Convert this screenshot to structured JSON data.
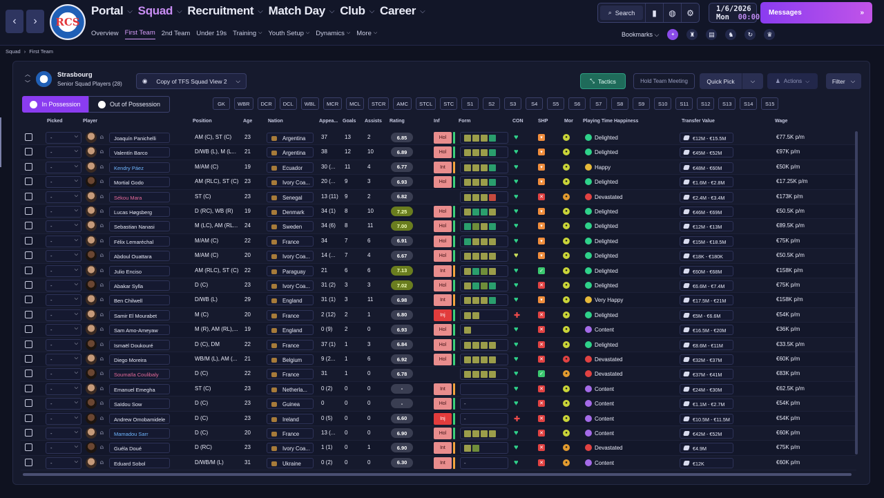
{
  "nav": {
    "back_icon": "chevron-left-icon",
    "forward_icon": "chevron-right-icon",
    "main": [
      {
        "label": "Portal"
      },
      {
        "label": "Squad"
      },
      {
        "label": "Recruitment"
      },
      {
        "label": "Match Day"
      },
      {
        "label": "Club"
      },
      {
        "label": "Career"
      }
    ],
    "sub": [
      {
        "label": "Overview"
      },
      {
        "label": "First Team"
      },
      {
        "label": "2nd Team"
      },
      {
        "label": "Under 19s"
      },
      {
        "label": "Training"
      },
      {
        "label": "Youth Setup"
      },
      {
        "label": "Dynamics"
      },
      {
        "label": "More"
      }
    ],
    "crest_text": "RCS"
  },
  "tools": {
    "search_label": "Search"
  },
  "date": {
    "day": "1/6/2026",
    "weekday": "Mon",
    "time": "00:00"
  },
  "messages": {
    "label": "Messages"
  },
  "bookmarks": {
    "label": "Bookmarks"
  },
  "breadcrumb": {
    "root": "Squad",
    "current": "First Team"
  },
  "club": {
    "name": "Strasbourg",
    "subtitle": "Senior Squad Players (28)"
  },
  "view": {
    "label": "Copy of TFS Squad View 2"
  },
  "buttons": {
    "tactics": "Tactics",
    "meeting": "Hold Team Meeting",
    "quick_pick": "Quick Pick",
    "actions": "Actions",
    "filter": "Filter"
  },
  "possession": {
    "in": "In Possession",
    "out": "Out of Possession"
  },
  "positions": [
    "GK",
    "WBR",
    "DCR",
    "DCL",
    "WBL",
    "MCR",
    "MCL",
    "STCR",
    "AMC",
    "STCL",
    "STC",
    "S1",
    "S2",
    "S3",
    "S4",
    "S5",
    "S6",
    "S7",
    "S8",
    "S9",
    "S10",
    "S11",
    "S12",
    "S13",
    "S14",
    "S15"
  ],
  "columns": {
    "picked": "Picked",
    "player": "Player",
    "position": "Position",
    "age": "Age",
    "nation": "Nation",
    "apps": "Appea...",
    "goals": "Goals",
    "assists": "Assists",
    "rating": "Rating",
    "inf": "Inf",
    "form": "Form",
    "con": "CON",
    "shp": "SHP",
    "mor": "Mor",
    "happiness": "Playing Time Happiness",
    "value": "Transfer Value",
    "wage": "Wage"
  },
  "players": [
    {
      "picked": "-",
      "name": "Joaquín Panichelli",
      "position": "AM (C), ST (C)",
      "age": "23",
      "nation": "Argentina",
      "apps": "37",
      "goals": "13",
      "assists": "2",
      "rating": "6.85",
      "inf": "Hol",
      "form": "yyyg",
      "con": "ok",
      "shp": "w",
      "mor": "y",
      "happiness": "Delighted",
      "value": "€12M - €15.5M",
      "wage": "€77.5K p/m"
    },
    {
      "picked": "-",
      "name": "Valentín Barco",
      "position": "D/WB (L), M (L...",
      "age": "21",
      "nation": "Argentina",
      "apps": "38",
      "goals": "12",
      "assists": "10",
      "rating": "6.89",
      "inf": "Hol",
      "form": "yyyg",
      "con": "ok",
      "shp": "w",
      "mor": "y",
      "happiness": "Delighted",
      "value": "€45M - €52M",
      "wage": "€97K p/m"
    },
    {
      "picked": "-",
      "name": "Kendry Páez",
      "position": "M/AM (C)",
      "age": "19",
      "nation": "Ecuador",
      "apps": "30 (...",
      "goals": "11",
      "assists": "4",
      "rating": "6.77",
      "inf": "Int",
      "form": "yyyg",
      "con": "ok",
      "shp": "w",
      "mor": "y",
      "happiness": "Happy",
      "value": "€48M - €60M",
      "wage": "€50K p/m"
    },
    {
      "picked": "-",
      "name": "Mortial Godo",
      "position": "AM (RLC), ST (C)",
      "age": "23",
      "nation": "Ivory Coa...",
      "apps": "20 (...",
      "goals": "9",
      "assists": "3",
      "rating": "6.93",
      "inf": "Hol",
      "form": "yyyg",
      "con": "ok",
      "shp": "w",
      "mor": "y",
      "happiness": "Delighted",
      "value": "€1.6M - €2.8M",
      "wage": "€17.25K p/m"
    },
    {
      "picked": "-",
      "name": "Sékou Mara",
      "position": "ST (C)",
      "age": "23",
      "nation": "Senegal",
      "apps": "13 (11)",
      "goals": "9",
      "assists": "2",
      "rating": "6.82",
      "inf": "",
      "form": "yyyr",
      "con": "ok",
      "shp": "x",
      "mor": "o",
      "happiness": "Devastated",
      "value": "€2.4M - €3.4M",
      "wage": "€173K p/m"
    },
    {
      "picked": "-",
      "name": "Lucas Høgsberg",
      "position": "D (RC), WB (R)",
      "age": "19",
      "nation": "Denmark",
      "apps": "34 (1)",
      "goals": "8",
      "assists": "10",
      "rating": "7.25",
      "inf": "Hol",
      "form": "yggy",
      "con": "ok",
      "shp": "w",
      "mor": "y",
      "happiness": "Delighted",
      "value": "€46M - €69M",
      "wage": "€50.5K p/m"
    },
    {
      "picked": "-",
      "name": "Sebastian Nanasi",
      "position": "M (LC), AM (RL...",
      "age": "24",
      "nation": "Sweden",
      "apps": "34 (6)",
      "goals": "8",
      "assists": "11",
      "rating": "7.00",
      "inf": "Hol",
      "form": "gdyg",
      "con": "ok",
      "shp": "w",
      "mor": "y",
      "happiness": "Delighted",
      "value": "€12M - €13M",
      "wage": "€89.5K p/m"
    },
    {
      "picked": "-",
      "name": "Félix Lemaréchal",
      "position": "M/AM (C)",
      "age": "22",
      "nation": "France",
      "apps": "34",
      "goals": "7",
      "assists": "6",
      "rating": "6.91",
      "inf": "Hol",
      "form": "gyyy",
      "con": "ok",
      "shp": "w",
      "mor": "y",
      "happiness": "Delighted",
      "value": "€15M - €18.5M",
      "wage": "€75K p/m"
    },
    {
      "picked": "-",
      "name": "Abdoul Ouattara",
      "position": "M/AM (C)",
      "age": "20",
      "nation": "Ivory Coa...",
      "apps": "14 (...",
      "goals": "7",
      "assists": "4",
      "rating": "6.67",
      "inf": "Hol",
      "form": "yyyy",
      "con": "y",
      "shp": "w",
      "mor": "y",
      "happiness": "Delighted",
      "value": "€18K - €180K",
      "wage": "€50.5K p/m"
    },
    {
      "picked": "-",
      "name": "Julio Enciso",
      "position": "AM (RLC), ST (C)",
      "age": "22",
      "nation": "Paraguay",
      "apps": "21",
      "goals": "6",
      "assists": "6",
      "rating": "7.13",
      "inf": "Int",
      "form": "ygdy",
      "con": "ok",
      "shp": "ok",
      "mor": "y",
      "happiness": "Delighted",
      "value": "€60M - €68M",
      "wage": "€158K p/m"
    },
    {
      "picked": "-",
      "name": "Abakar Sylla",
      "position": "D (C)",
      "age": "23",
      "nation": "Ivory Coa...",
      "apps": "31 (2)",
      "goals": "3",
      "assists": "3",
      "rating": "7.02",
      "inf": "Hol",
      "form": "ygdg",
      "con": "ok",
      "shp": "x",
      "mor": "y",
      "happiness": "Delighted",
      "value": "€6.6M - €7.4M",
      "wage": "€75K p/m"
    },
    {
      "picked": "-",
      "name": "Ben Chilwell",
      "position": "D/WB (L)",
      "age": "29",
      "nation": "England",
      "apps": "31 (1)",
      "goals": "3",
      "assists": "11",
      "rating": "6.98",
      "inf": "Int",
      "form": "yyyg",
      "con": "ok",
      "shp": "w",
      "mor": "y",
      "happiness": "Very Happy",
      "value": "€17.5M - €21M",
      "wage": "€158K p/m"
    },
    {
      "picked": "-",
      "name": "Samir El Mourabet",
      "position": "M (C)",
      "age": "20",
      "nation": "France",
      "apps": "2 (12)",
      "goals": "2",
      "assists": "1",
      "rating": "6.80",
      "inf": "Inj",
      "form": "yy",
      "con": "red",
      "shp": "x",
      "mor": "y",
      "happiness": "Delighted",
      "value": "€5M - €6.6M",
      "wage": "€54K p/m"
    },
    {
      "picked": "-",
      "name": "Sam Amo-Ameyaw",
      "position": "M (R), AM (RL),...",
      "age": "19",
      "nation": "England",
      "apps": "0 (9)",
      "goals": "2",
      "assists": "0",
      "rating": "6.93",
      "inf": "Hol",
      "form": "y",
      "con": "ok",
      "shp": "x",
      "mor": "y",
      "happiness": "Content",
      "value": "€16.5M - €20M",
      "wage": "€36K p/m"
    },
    {
      "picked": "-",
      "name": "Ismaël Doukouré",
      "position": "D (C), DM",
      "age": "22",
      "nation": "France",
      "apps": "37 (1)",
      "goals": "1",
      "assists": "3",
      "rating": "6.84",
      "inf": "Hol",
      "form": "yyyy",
      "con": "ok",
      "shp": "x",
      "mor": "y",
      "happiness": "Delighted",
      "value": "€8.6M - €11M",
      "wage": "€33.5K p/m"
    },
    {
      "picked": "-",
      "name": "Diego Moreira",
      "position": "WB/M (L), AM (...",
      "age": "21",
      "nation": "Belgium",
      "apps": "9 (2...",
      "goals": "1",
      "assists": "6",
      "rating": "6.92",
      "inf": "Hol",
      "form": "yyyy",
      "con": "ok",
      "shp": "x",
      "mor": "r",
      "happiness": "Devastated",
      "value": "€32M - €37M",
      "wage": "€60K p/m"
    },
    {
      "picked": "-",
      "name": "Soumaïla Coulibaly",
      "position": "D (C)",
      "age": "22",
      "nation": "France",
      "apps": "31",
      "goals": "1",
      "assists": "0",
      "rating": "6.78",
      "inf": "",
      "form": "yyyy",
      "con": "ok",
      "shp": "ok",
      "mor": "o",
      "happiness": "Devastated",
      "value": "€37M - €41M",
      "wage": "€83K p/m"
    },
    {
      "picked": "-",
      "name": "Emanuel Emegha",
      "position": "ST (C)",
      "age": "23",
      "nation": "Netherla...",
      "apps": "0 (2)",
      "goals": "0",
      "assists": "0",
      "rating": "-",
      "inf": "Int",
      "form": "",
      "con": "ok",
      "shp": "x",
      "mor": "y",
      "happiness": "Content",
      "value": "€24M - €30M",
      "wage": "€62.5K p/m"
    },
    {
      "picked": "-",
      "name": "Saïdou Sow",
      "position": "D (C)",
      "age": "23",
      "nation": "Guinea",
      "apps": "0",
      "goals": "0",
      "assists": "0",
      "rating": "-",
      "inf": "Hol",
      "form": "-",
      "con": "ok",
      "shp": "x",
      "mor": "y",
      "happiness": "Content",
      "value": "€1.1M - €2.7M",
      "wage": "€54K p/m"
    },
    {
      "picked": "-",
      "name": "Andrew Omobamidele",
      "position": "D (C)",
      "age": "23",
      "nation": "Ireland",
      "apps": "0 (5)",
      "goals": "0",
      "assists": "0",
      "rating": "6.60",
      "inf": "Inj",
      "form": "-",
      "con": "red",
      "shp": "x",
      "mor": "y",
      "happiness": "Content",
      "value": "€10.5M - €11.5M",
      "wage": "€54K p/m"
    },
    {
      "picked": "-",
      "name": "Mamadou Sarr",
      "position": "D (C)",
      "age": "20",
      "nation": "France",
      "apps": "13 (...",
      "goals": "0",
      "assists": "0",
      "rating": "6.90",
      "inf": "Hol",
      "form": "yyyy",
      "con": "ok",
      "shp": "x",
      "mor": "y",
      "happiness": "Content",
      "value": "€42M - €52M",
      "wage": "€60K p/m"
    },
    {
      "picked": "-",
      "name": "Guéla Doué",
      "position": "D (RC)",
      "age": "23",
      "nation": "Ivory Coa...",
      "apps": "1 (1)",
      "goals": "0",
      "assists": "1",
      "rating": "6.90",
      "inf": "Int",
      "form": "yd",
      "con": "ok",
      "shp": "x",
      "mor": "o",
      "happiness": "Devastated",
      "value": "€4.9M",
      "wage": "€75K p/m"
    },
    {
      "picked": "-",
      "name": "Eduard Sobol",
      "position": "D/WB/M (L)",
      "age": "31",
      "nation": "Ukraine",
      "apps": "0 (2)",
      "goals": "0",
      "assists": "0",
      "rating": "6.30",
      "inf": "Int",
      "form": "-",
      "con": "ok",
      "shp": "x",
      "mor": "o",
      "happiness": "Content",
      "value": "€12K",
      "wage": "€60K p/m"
    }
  ]
}
